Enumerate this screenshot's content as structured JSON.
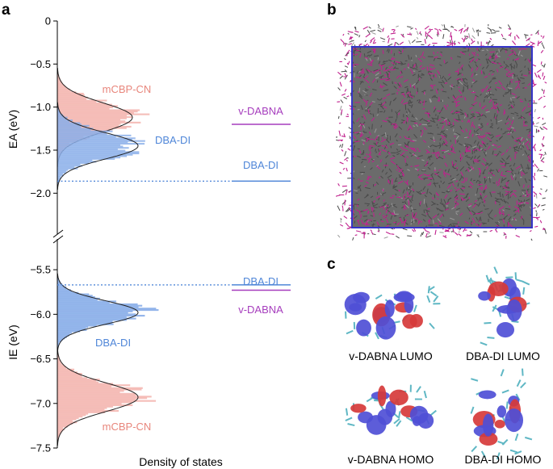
{
  "panels": {
    "a": "a",
    "b": "b",
    "c": "c"
  },
  "chart_data": {
    "type": "histogram",
    "xlabel": "Density of states",
    "ylabel_top": "EA (eV)",
    "ylabel_bottom": "IE (eV)",
    "ylim_top": [
      -2.4,
      0
    ],
    "ylim_bottom": [
      -7.5,
      -5.2
    ],
    "yticks_top": [
      {
        "v": 0,
        "label": "0"
      },
      {
        "v": -0.5,
        "label": "−0.5"
      },
      {
        "v": -1.0,
        "label": "−1.0"
      },
      {
        "v": -1.5,
        "label": "−1.5"
      },
      {
        "v": -2.0,
        "label": "−2.0"
      }
    ],
    "yticks_bottom": [
      {
        "v": -5.5,
        "label": "−5.5"
      },
      {
        "v": -6.0,
        "label": "−6.0"
      },
      {
        "v": -6.5,
        "label": "−6.5"
      },
      {
        "v": -7.0,
        "label": "−7.0"
      },
      {
        "v": -7.5,
        "label": "−7.5"
      }
    ],
    "series": [
      {
        "name": "mCBP-CN",
        "label": "mCBP-CN",
        "axis": "top",
        "mean": -1.12,
        "sigma": 0.17,
        "amp": 0.93,
        "color": "#f4b7b1",
        "label_color": "#e8867c"
      },
      {
        "name": "DBA-DI",
        "label": "DBA-DI",
        "axis": "top",
        "mean": -1.45,
        "sigma": 0.15,
        "amp": 1.0,
        "color": "#8aaee9",
        "label_color": "#4f86d8"
      },
      {
        "name": "DBA-DI",
        "label": "DBA-DI",
        "axis": "bottom",
        "mean": -5.98,
        "sigma": 0.13,
        "amp": 1.0,
        "color": "#8aaee9",
        "label_color": "#4f86d8"
      },
      {
        "name": "mCBP-CN",
        "label": "mCBP-CN",
        "axis": "bottom",
        "mean": -6.93,
        "sigma": 0.16,
        "amp": 1.0,
        "color": "#f4b7b1",
        "label_color": "#e8867c"
      }
    ],
    "levels": [
      {
        "name": "v-DABNA",
        "label": "v-DABNA",
        "axis": "top",
        "value": -1.2,
        "color": "#a63dbd"
      },
      {
        "name": "DBA-DI",
        "label": "DBA-DI",
        "axis": "top",
        "value": -1.86,
        "color": "#4f86d8"
      },
      {
        "name": "DBA-DI",
        "label": "DBA-DI",
        "axis": "bottom",
        "value": -5.67,
        "color": "#4f86d8"
      },
      {
        "name": "v-DABNA",
        "label": "v-DABNA",
        "axis": "bottom",
        "value": -5.73,
        "color": "#a63dbd"
      }
    ],
    "dotted_levels": [
      {
        "axis": "top",
        "value": -1.86,
        "color": "#4f86d8"
      },
      {
        "axis": "bottom",
        "value": -5.67,
        "color": "#4f86d8"
      }
    ]
  },
  "orbitals": {
    "labels": [
      "v-DABNA LUMO",
      "DBA-DI LUMO",
      "v-DABNA HOMO",
      "DBA-DI HOMO"
    ],
    "colors": {
      "positive": "#d63a3a",
      "negative": "#4f4fd6"
    }
  },
  "simulation_box": {
    "colors": {
      "frame": "#3535c9",
      "matrix": "#5a5a5a",
      "guest": "#c0208d"
    }
  }
}
